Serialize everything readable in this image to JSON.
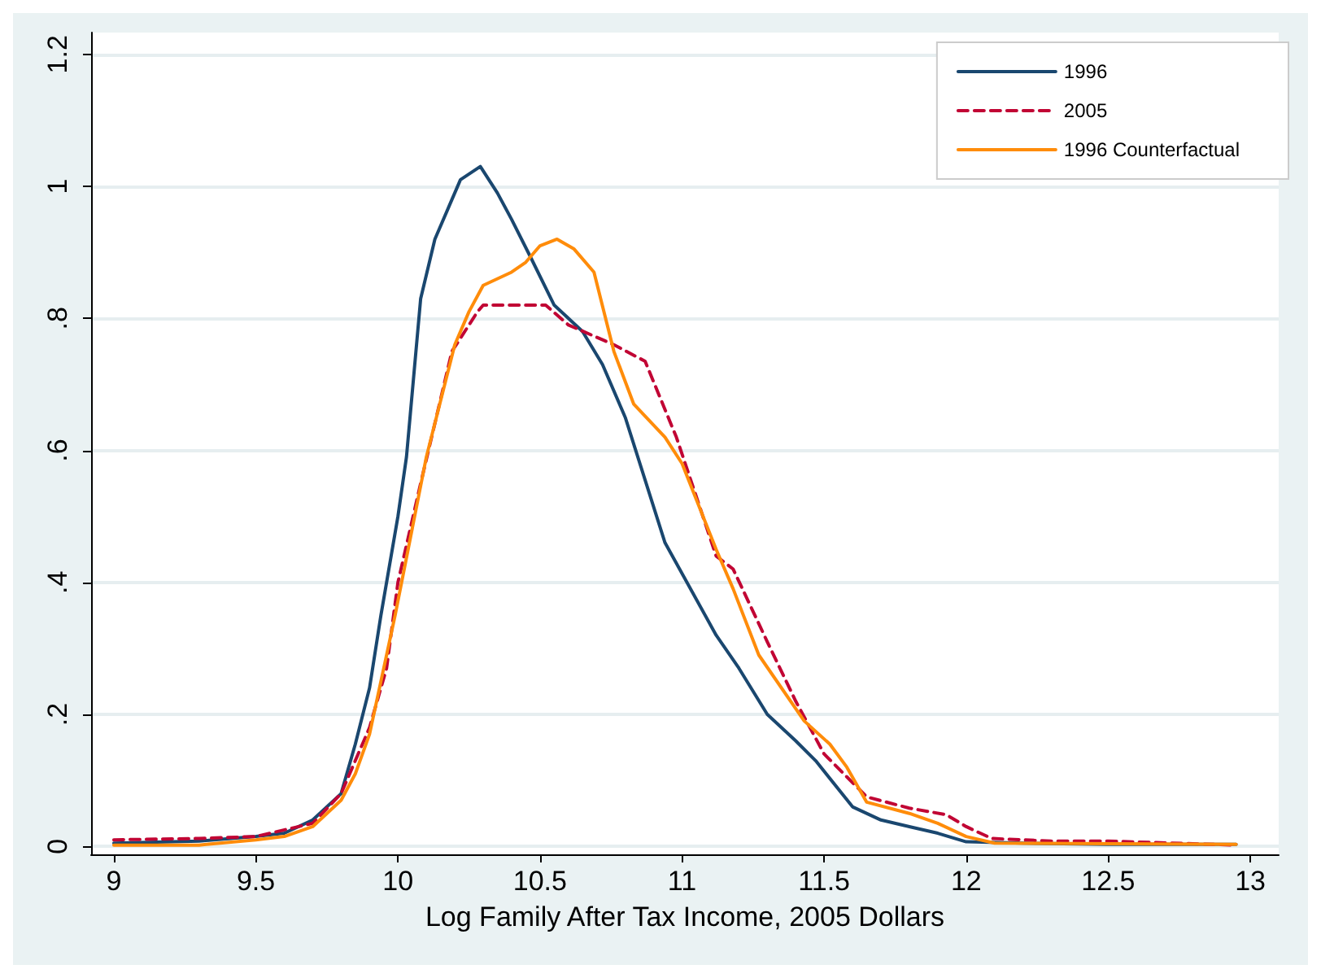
{
  "chart_data": {
    "type": "line",
    "xlabel": "Log Family After Tax Income, 2005 Dollars",
    "xlim": [
      8.92,
      13.1
    ],
    "ylim": [
      -0.012,
      1.233
    ],
    "xticks": [
      9,
      9.5,
      10,
      10.5,
      11,
      11.5,
      12,
      12.5,
      13
    ],
    "yticks": [
      {
        "value": 0,
        "label": "0"
      },
      {
        "value": 0.2,
        "label": ".2"
      },
      {
        "value": 0.4,
        "label": ".4"
      },
      {
        "value": 0.6,
        "label": ".6"
      },
      {
        "value": 0.8,
        "label": ".8"
      },
      {
        "value": 1,
        "label": "1"
      },
      {
        "value": 1.2,
        "label": "1.2"
      }
    ],
    "grid": "y",
    "legend": "top right",
    "marker": "none",
    "series": [
      {
        "name": "1996",
        "color": "#1a476f",
        "line_style": "solid",
        "x": [
          9,
          9.3,
          9.5,
          9.6,
          9.7,
          9.8,
          9.85,
          9.9,
          9.94,
          10,
          10.03,
          10.08,
          10.13,
          10.18,
          10.22,
          10.29,
          10.35,
          10.4,
          10.47,
          10.55,
          10.65,
          10.72,
          10.8,
          10.94,
          11.12,
          11.2,
          11.3,
          11.4,
          11.47,
          11.6,
          11.7,
          11.8,
          11.9,
          12,
          12.2,
          12.5,
          12.95
        ],
        "values": [
          0.005,
          0.008,
          0.015,
          0.02,
          0.04,
          0.08,
          0.155,
          0.24,
          0.35,
          0.5,
          0.59,
          0.83,
          0.92,
          0.97,
          1.01,
          1.03,
          0.99,
          0.95,
          0.89,
          0.82,
          0.78,
          0.73,
          0.65,
          0.46,
          0.32,
          0.27,
          0.2,
          0.16,
          0.13,
          0.06,
          0.04,
          0.03,
          0.02,
          0.007,
          0.005,
          0.003,
          0.003
        ]
      },
      {
        "name": "2005",
        "color": "#c10534",
        "line_style": "dashed",
        "x": [
          9,
          9.3,
          9.5,
          9.7,
          9.8,
          9.9,
          9.96,
          10,
          10.08,
          10.19,
          10.28,
          10.3,
          10.52,
          10.6,
          10.76,
          10.87,
          10.98,
          11.12,
          11.18,
          11.3,
          11.4,
          11.5,
          11.65,
          11.8,
          11.93,
          12,
          12.09,
          12.3,
          12.5,
          12.95
        ],
        "values": [
          0.01,
          0.012,
          0.015,
          0.035,
          0.08,
          0.18,
          0.27,
          0.4,
          0.55,
          0.75,
          0.81,
          0.82,
          0.82,
          0.79,
          0.76,
          0.735,
          0.62,
          0.44,
          0.42,
          0.31,
          0.22,
          0.14,
          0.075,
          0.058,
          0.048,
          0.03,
          0.012,
          0.008,
          0.008,
          0.002
        ]
      },
      {
        "name": "1996 Counterfactual",
        "color": "#ff8c0a",
        "line_style": "solid",
        "x": [
          9,
          9.3,
          9.5,
          9.6,
          9.7,
          9.8,
          9.85,
          9.9,
          9.99,
          10.1,
          10.2,
          10.25,
          10.3,
          10.4,
          10.45,
          10.5,
          10.56,
          10.62,
          10.69,
          10.76,
          10.83,
          10.94,
          11,
          11.12,
          11.18,
          11.27,
          11.43,
          11.52,
          11.58,
          11.65,
          11.8,
          11.9,
          12,
          12.1,
          12.95
        ],
        "values": [
          0.002,
          0.002,
          0.01,
          0.015,
          0.03,
          0.07,
          0.11,
          0.17,
          0.35,
          0.59,
          0.76,
          0.81,
          0.85,
          0.87,
          0.885,
          0.91,
          0.92,
          0.905,
          0.87,
          0.75,
          0.67,
          0.62,
          0.58,
          0.45,
          0.39,
          0.29,
          0.19,
          0.155,
          0.12,
          0.067,
          0.05,
          0.035,
          0.015,
          0.005,
          0.003
        ]
      }
    ]
  }
}
